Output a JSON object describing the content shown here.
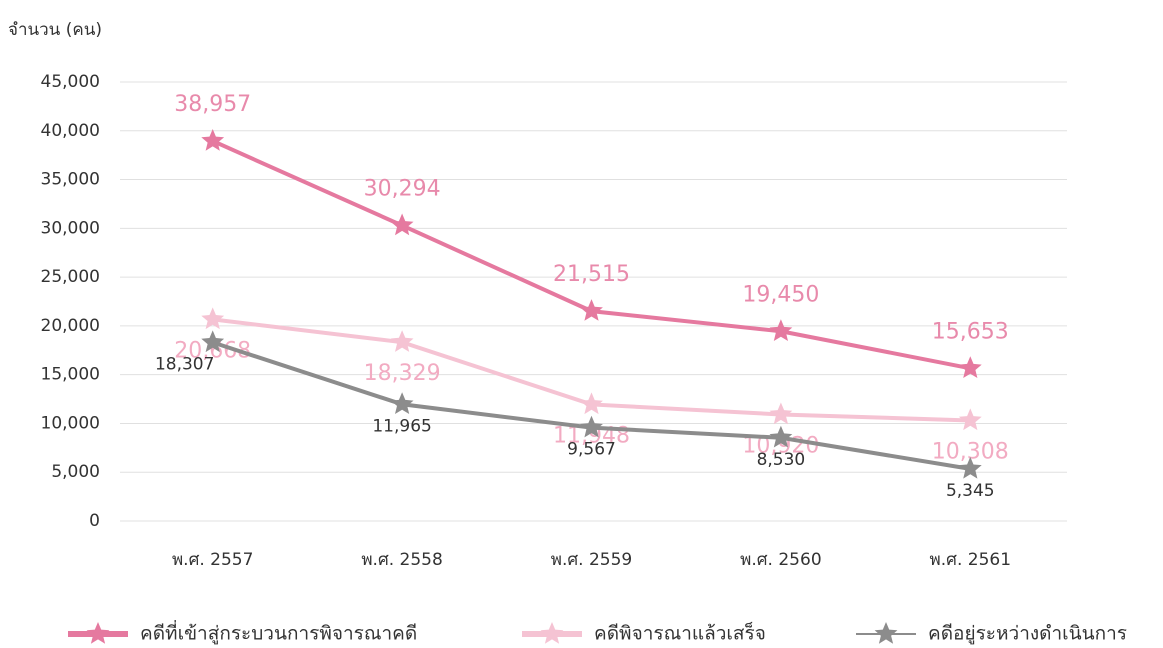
{
  "chart_data": {
    "type": "line",
    "y_label": "จำนวน (คน)",
    "categories": [
      "พ.ศ. 2557",
      "พ.ศ. 2558",
      "พ.ศ. 2559",
      "พ.ศ. 2560",
      "พ.ศ. 2561"
    ],
    "series": [
      {
        "name": "คดีที่เข้าสู่กระบวนการพิจารณาคดี",
        "color": "#e5799f",
        "label_color": "#e88aab",
        "values": [
          38957,
          30294,
          21515,
          19450,
          15653
        ],
        "value_labels": [
          "38,957",
          "30,294",
          "21,515",
          "19,450",
          "15,653"
        ]
      },
      {
        "name": "คดีพิจารณาแล้วเสร็จ",
        "color": "#f5c3d3",
        "label_color": "#f2abc2",
        "values": [
          20668,
          18329,
          11948,
          10920,
          10308
        ],
        "value_labels": [
          "20,668",
          "18,329",
          "11,948",
          "10,920",
          "10,308"
        ]
      },
      {
        "name": "คดีอยู่ระหว่างดำเนินการ",
        "color": "#8c8c8c",
        "label_color": "#333333",
        "values": [
          18307,
          11965,
          9567,
          8530,
          5345
        ],
        "value_labels": [
          "18,307",
          "11,965",
          "9,567",
          "8,530",
          "5,345"
        ]
      }
    ],
    "ylim": [
      0,
      45000
    ],
    "yticks": [
      0,
      {
        "value": 5000,
        "label": "5,000"
      },
      {
        "value": 10000,
        "label": "10,000"
      },
      {
        "value": 15000,
        "label": "15,000"
      },
      {
        "value": 20000,
        "label": "20,000"
      },
      {
        "value": 25000,
        "label": "25,000"
      },
      {
        "value": 30000,
        "label": "30,000"
      },
      {
        "value": 35000,
        "label": "35,000"
      },
      {
        "value": 40000,
        "label": "40,000"
      },
      {
        "value": 45000,
        "label": "45,000"
      }
    ],
    "grid": true,
    "legend": "bottom"
  }
}
